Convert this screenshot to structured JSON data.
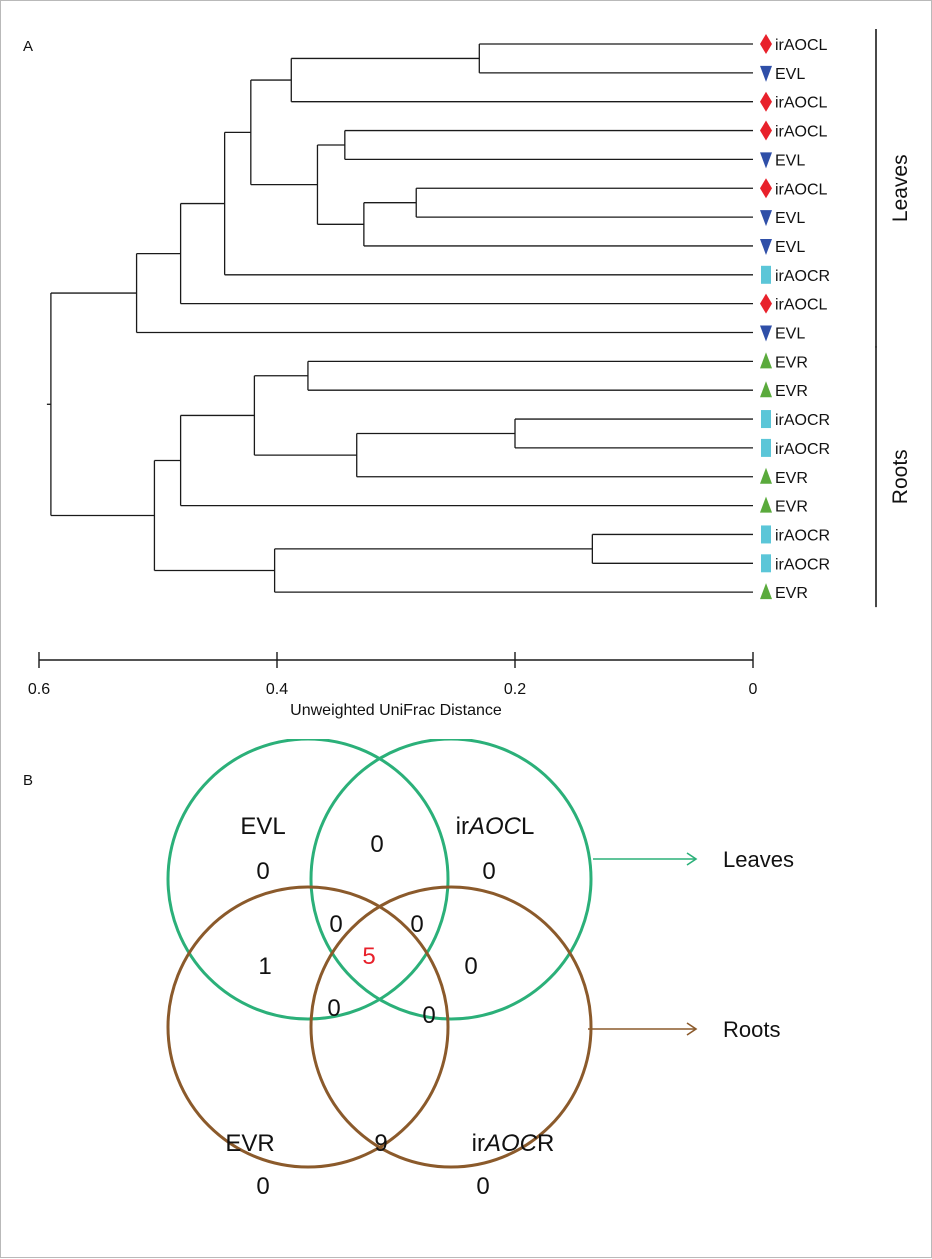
{
  "panel_a": {
    "letter": "A",
    "leaves": [
      {
        "label": "irAOCL",
        "marker": "diamond",
        "color": "#e8212b"
      },
      {
        "label": "EVL",
        "marker": "triangle-down",
        "color": "#2f4fa8"
      },
      {
        "label": "irAOCL",
        "marker": "diamond",
        "color": "#e8212b"
      },
      {
        "label": "irAOCL",
        "marker": "diamond",
        "color": "#e8212b"
      },
      {
        "label": "EVL",
        "marker": "triangle-down",
        "color": "#2f4fa8"
      },
      {
        "label": "irAOCL",
        "marker": "diamond",
        "color": "#e8212b"
      },
      {
        "label": "EVL",
        "marker": "triangle-down",
        "color": "#2f4fa8"
      },
      {
        "label": "EVL",
        "marker": "triangle-down",
        "color": "#2f4fa8"
      },
      {
        "label": "irAOCR",
        "marker": "square",
        "color": "#5bc6d8"
      },
      {
        "label": "irAOCL",
        "marker": "diamond",
        "color": "#e8212b"
      },
      {
        "label": "EVL",
        "marker": "triangle-down",
        "color": "#2f4fa8"
      },
      {
        "label": "EVR",
        "marker": "triangle-up",
        "color": "#5aaa3c"
      },
      {
        "label": "EVR",
        "marker": "triangle-up",
        "color": "#5aaa3c"
      },
      {
        "label": "irAOCR",
        "marker": "square",
        "color": "#5bc6d8"
      },
      {
        "label": "irAOCR",
        "marker": "square",
        "color": "#5bc6d8"
      },
      {
        "label": "EVR",
        "marker": "triangle-up",
        "color": "#5aaa3c"
      },
      {
        "label": "EVR",
        "marker": "triangle-up",
        "color": "#5aaa3c"
      },
      {
        "label": "irAOCR",
        "marker": "square",
        "color": "#5bc6d8"
      },
      {
        "label": "irAOCR",
        "marker": "square",
        "color": "#5bc6d8"
      },
      {
        "label": "EVR",
        "marker": "triangle-up",
        "color": "#5aaa3c"
      }
    ],
    "merges": [
      {
        "a": 0,
        "b": 1,
        "h": 0.23
      },
      {
        "a": "n0",
        "b": 2,
        "h": 0.388
      },
      {
        "a": 3,
        "b": 4,
        "h": 0.343
      },
      {
        "a": 5,
        "b": 6,
        "h": 0.283
      },
      {
        "a": "n3",
        "b": 7,
        "h": 0.327
      },
      {
        "a": "n2",
        "b": "n4",
        "h": 0.366
      },
      {
        "a": "n1",
        "b": "n5",
        "h": 0.422
      },
      {
        "a": "n6",
        "b": 8,
        "h": 0.444
      },
      {
        "a": "n7",
        "b": 9,
        "h": 0.481
      },
      {
        "a": "n8",
        "b": 10,
        "h": 0.518
      },
      {
        "a": 11,
        "b": 12,
        "h": 0.374
      },
      {
        "a": 13,
        "b": 14,
        "h": 0.2
      },
      {
        "a": "n11",
        "b": 15,
        "h": 0.333
      },
      {
        "a": "n10",
        "b": "n12",
        "h": 0.419
      },
      {
        "a": "n13",
        "b": 16,
        "h": 0.481
      },
      {
        "a": 17,
        "b": 18,
        "h": 0.135
      },
      {
        "a": "n15",
        "b": 19,
        "h": 0.402
      },
      {
        "a": "n14",
        "b": "n16",
        "h": 0.503
      },
      {
        "a": "n9",
        "b": "n17",
        "h": 0.59
      }
    ],
    "axis": {
      "label": "Unweighted UniFrac Distance",
      "ticks": [
        {
          "value": 0.6,
          "label": "0.6"
        },
        {
          "value": 0.4,
          "label": "0.4"
        },
        {
          "value": 0.2,
          "label": "0.2"
        },
        {
          "value": 0,
          "label": "0"
        }
      ]
    },
    "groups": [
      {
        "label": "Leaves",
        "from": 0,
        "to": 10
      },
      {
        "label": "Roots",
        "from": 11,
        "to": 19
      }
    ]
  },
  "panel_b": {
    "letter": "B",
    "circles": [
      {
        "name": "EVL",
        "color": "#2bb079"
      },
      {
        "name": "irAOCL",
        "color": "#2bb079"
      },
      {
        "name": "EVR",
        "color": "#8b5a2b"
      },
      {
        "name": "irAOCR",
        "color": "#8b5a2b"
      }
    ],
    "set_labels": [
      {
        "id": "evl",
        "parts": [
          {
            "t": "EVL",
            "i": false
          }
        ]
      },
      {
        "id": "iraocl",
        "parts": [
          {
            "t": "ir",
            "i": false
          },
          {
            "t": "AOC",
            "i": true
          },
          {
            "t": "L",
            "i": false
          }
        ]
      },
      {
        "id": "evr",
        "parts": [
          {
            "t": "EVR",
            "i": false
          }
        ]
      },
      {
        "id": "iraocr",
        "parts": [
          {
            "t": "ir",
            "i": false
          },
          {
            "t": "AOC",
            "i": true
          },
          {
            "t": "R",
            "i": false
          }
        ]
      }
    ],
    "counts": [
      {
        "id": "evl-only",
        "value": "0",
        "color": "#111111"
      },
      {
        "id": "iraocl-only",
        "value": "0",
        "color": "#111111"
      },
      {
        "id": "evr-only",
        "value": "0",
        "color": "#111111"
      },
      {
        "id": "iraocr-only",
        "value": "0",
        "color": "#111111"
      },
      {
        "id": "evl-iraocl",
        "value": "0",
        "color": "#111111"
      },
      {
        "id": "evl-evr",
        "value": "1",
        "color": "#111111"
      },
      {
        "id": "iraocl-iraocr",
        "value": "0",
        "color": "#111111"
      },
      {
        "id": "evr-iraocr",
        "value": "9",
        "color": "#111111"
      },
      {
        "id": "evl-iraocl-evr",
        "value": "0",
        "color": "#111111"
      },
      {
        "id": "evl-iraocl-iraocr",
        "value": "0",
        "color": "#111111"
      },
      {
        "id": "evl-evr-iraocr",
        "value": "0",
        "color": "#111111"
      },
      {
        "id": "iraocl-evr-iraocr",
        "value": "0",
        "color": "#111111"
      },
      {
        "id": "all-four",
        "value": "5",
        "color": "#e8212b"
      }
    ],
    "arrows": [
      {
        "label": "Leaves",
        "color": "#2bb079"
      },
      {
        "label": "Roots",
        "color": "#8b5a2b"
      }
    ]
  }
}
